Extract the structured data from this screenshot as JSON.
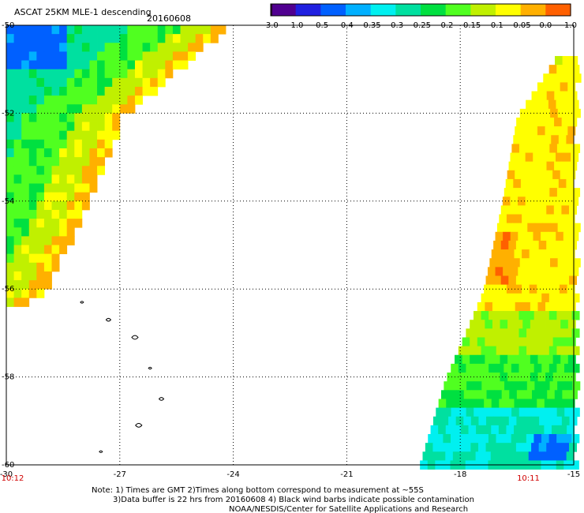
{
  "chart_data": {
    "type": "heatmap",
    "title": "ASCAT 25KM MLE-1 descending",
    "date": "20160608",
    "xlabel": "",
    "ylabel": "",
    "x_ticks": [
      "-30",
      "-27",
      "-24",
      "-21",
      "-18",
      "-15"
    ],
    "y_ticks": [
      "-50",
      "-52",
      "-54",
      "-56",
      "-58",
      "-60"
    ],
    "xlim": [
      -30,
      -15
    ],
    "ylim": [
      -60,
      -50
    ],
    "grid": true,
    "colorbar": {
      "ticks": [
        "-3.0",
        "-1.0",
        "-0.5",
        "-0.4",
        "-0.35",
        "-0.3",
        "-0.25",
        "-0.2",
        "-0.15",
        "-0.1",
        "-0.05",
        "0.0",
        "1.0"
      ],
      "colors": [
        "#2a0034",
        "#500090",
        "#2020e0",
        "#0060ff",
        "#00b0ff",
        "#00f0f0",
        "#00e0a0",
        "#00e040",
        "#50ff20",
        "#c0f000",
        "#ffff00",
        "#ffb000",
        "#ff6000",
        "#ff1010"
      ]
    },
    "times": [
      {
        "label": "10:12",
        "lon": -30
      },
      {
        "label": "10:11",
        "lon": -16.2
      }
    ],
    "swaths": [
      {
        "side": "west",
        "edge_lon_at_lat": [
          [
            -50,
            -24.3
          ],
          [
            -52,
            -27.0
          ],
          [
            -54,
            -27.9
          ],
          [
            -56,
            -29.1
          ],
          [
            -56.3,
            -29.6
          ]
        ],
        "value_bands": [
          {
            "max_offset_deg": 0.5,
            "value": -0.04
          },
          {
            "max_offset_deg": 1.3,
            "value": -0.12
          },
          {
            "max_offset_deg": 2.6,
            "value": -0.19
          },
          {
            "max_offset_deg": 99,
            "value": -0.27
          }
        ],
        "corner_value_nw": -0.42
      },
      {
        "side": "east",
        "edge_lon_at_lat": [
          [
            -50.7,
            -15.5
          ],
          [
            -52,
            -16.5
          ],
          [
            -54,
            -16.9
          ],
          [
            -56,
            -17.4
          ],
          [
            -58,
            -18.4
          ],
          [
            -60,
            -19.1
          ]
        ],
        "value_bands": [
          {
            "lat_min": -56.5,
            "value": -0.07
          },
          {
            "lat_min": -57.5,
            "value": -0.14
          },
          {
            "lat_min": -58.6,
            "value": -0.2
          },
          {
            "lat_min": -99,
            "value": -0.3
          }
        ],
        "orange_patch": {
          "lat": [
            -55.8,
            -54.7
          ],
          "lon": [
            -17.6,
            -16.6
          ],
          "value": -0.02
        },
        "deep_blue_patch": {
          "lat": [
            -59.9,
            -59.2
          ],
          "lon": [
            -16.2,
            -15.2
          ],
          "value": -0.4
        }
      }
    ],
    "land_outlines": [
      {
        "lat": -56.3,
        "lon": -28.0
      },
      {
        "lat": -56.7,
        "lon": -27.3
      },
      {
        "lat": -57.1,
        "lon": -26.6
      },
      {
        "lat": -57.8,
        "lon": -26.2
      },
      {
        "lat": -58.5,
        "lon": -25.9
      },
      {
        "lat": -59.1,
        "lon": -26.5
      },
      {
        "lat": -59.7,
        "lon": -27.5
      }
    ]
  },
  "notes": {
    "line1": "Note: 1) Times are GMT 2)Times along bottom correspond to measurement at ~55S",
    "line2": "3)Data buffer is 22 hrs from 20160608 4) Black wind barbs indicate possible contamination",
    "line3": "NOAA/NESDIS/Center for Satellite Applications and Research"
  }
}
